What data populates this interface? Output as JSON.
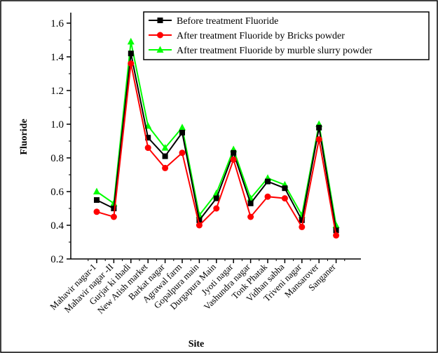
{
  "chart_data": {
    "type": "line",
    "categories": [
      "Mahavir nagar-1",
      "Mahavir nagar -II",
      "Gurjar ki thadi",
      "New Atish market",
      "Barkat nagar",
      "Agrawal farm",
      "Gopalpura main",
      "Durgapura Main",
      "Jyoti nagar",
      "Vashundra nagar",
      "Tonk Phatak",
      "Vidhan sabha",
      "Triveni nagar",
      "Mansarover",
      "Sanganer"
    ],
    "series": [
      {
        "name": "Before treatment Fluoride",
        "color": "#000000",
        "marker": "square",
        "values": [
          0.55,
          0.5,
          1.42,
          0.92,
          0.81,
          0.95,
          0.43,
          0.56,
          0.83,
          0.53,
          0.66,
          0.62,
          0.43,
          0.98,
          0.37
        ]
      },
      {
        "name": "After treatment Fluoride by Bricks powder",
        "color": "#ff0000",
        "marker": "circle",
        "values": [
          0.48,
          0.45,
          1.36,
          0.86,
          0.74,
          0.83,
          0.4,
          0.5,
          0.79,
          0.45,
          0.57,
          0.56,
          0.39,
          0.91,
          0.34
        ]
      },
      {
        "name": "After treatment Fluoride by murble slurry powder",
        "color": "#00ff00",
        "marker": "triangle",
        "values": [
          0.6,
          0.53,
          1.49,
          0.99,
          0.86,
          0.98,
          0.46,
          0.59,
          0.85,
          0.56,
          0.68,
          0.64,
          0.46,
          1.0,
          0.4
        ]
      }
    ],
    "ylim": [
      0.2,
      1.6
    ],
    "yticks": [
      0.2,
      0.4,
      0.6,
      0.8,
      {
        "value": 1,
        "label": "1.0"
      },
      1.2,
      1.4,
      1.6
    ],
    "x_label": "Site",
    "y_label": "Fluoride"
  }
}
